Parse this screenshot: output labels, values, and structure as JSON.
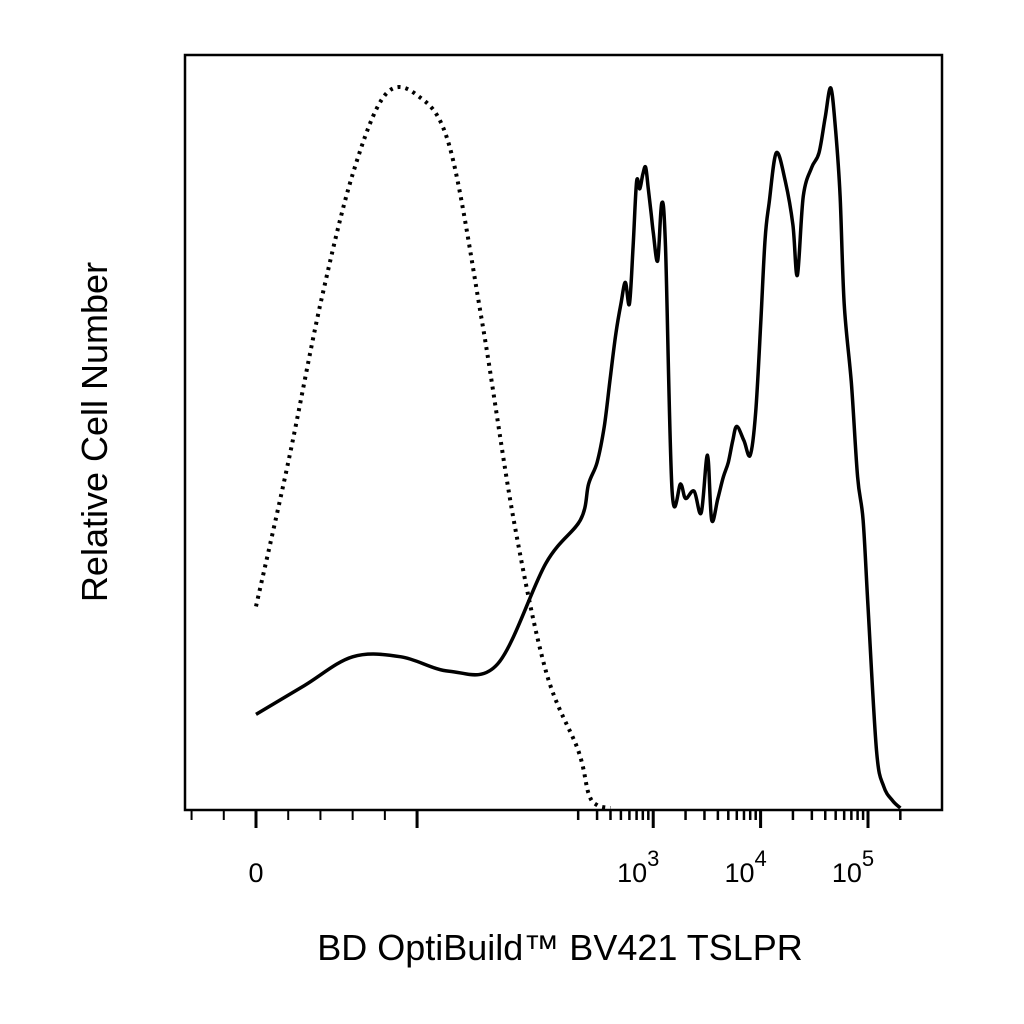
{
  "chart_data": {
    "type": "line",
    "title": "",
    "xlabel": "BD OptiBuild™ BV421 TSLPR",
    "ylabel": "Relative Cell Number",
    "x_scale": "biexponential",
    "xlim": [
      -300,
      200000
    ],
    "ylim": [
      0,
      1
    ],
    "x_tick_labels": [
      {
        "value": 0,
        "base": "0",
        "exp": ""
      },
      {
        "value": 1000,
        "base": "10",
        "exp": "3"
      },
      {
        "value": 10000,
        "base": "10",
        "exp": "4"
      },
      {
        "value": 100000,
        "base": "10",
        "exp": "5"
      }
    ],
    "grid": false,
    "legend": "none",
    "series": [
      {
        "style": "dotted",
        "color": "#000000",
        "x": [
          -300,
          -200,
          -100,
          -50,
          0,
          20,
          40,
          60,
          80,
          100,
          120,
          140,
          160,
          180,
          200,
          250,
          300,
          400
        ],
        "y": [
          0.0,
          0.005,
          0.04,
          0.12,
          0.28,
          0.48,
          0.7,
          0.88,
          0.99,
          0.99,
          0.92,
          0.68,
          0.4,
          0.19,
          0.08,
          0.02,
          0.004,
          0.0
        ]
      },
      {
        "style": "solid",
        "color": "#000000",
        "x": [
          -300,
          -200,
          -120,
          -60,
          0,
          30,
          60,
          90,
          120,
          150,
          180,
          210,
          250,
          300,
          350,
          400,
          450,
          500,
          550,
          600,
          650,
          700,
          750,
          800,
          850,
          900,
          950,
          1000,
          1100,
          1200,
          1300,
          1500,
          1800,
          2000,
          2400,
          2800,
          3200,
          3500,
          4000,
          4500,
          5000,
          5500,
          6000,
          7000,
          8000,
          9000,
          10000,
          11000,
          12000,
          14000,
          17000,
          20000,
          22000,
          25000,
          30000,
          35000,
          40000,
          45000,
          50000,
          55000,
          60000,
          70000,
          80000,
          90000,
          100000,
          120000,
          140000,
          170000,
          200000
        ],
        "y": [
          0.0,
          0.01,
          0.06,
          0.11,
          0.13,
          0.17,
          0.21,
          0.21,
          0.19,
          0.2,
          0.34,
          0.4,
          0.45,
          0.48,
          0.53,
          0.6,
          0.66,
          0.7,
          0.73,
          0.7,
          0.78,
          0.87,
          0.86,
          0.88,
          0.89,
          0.86,
          0.83,
          0.8,
          0.76,
          0.84,
          0.78,
          0.44,
          0.45,
          0.43,
          0.44,
          0.41,
          0.49,
          0.4,
          0.43,
          0.46,
          0.48,
          0.51,
          0.53,
          0.51,
          0.49,
          0.55,
          0.67,
          0.79,
          0.84,
          0.91,
          0.87,
          0.81,
          0.74,
          0.85,
          0.89,
          0.91,
          0.96,
          1.0,
          0.94,
          0.85,
          0.7,
          0.59,
          0.46,
          0.4,
          0.28,
          0.08,
          0.03,
          0.01,
          0.0
        ]
      }
    ]
  }
}
